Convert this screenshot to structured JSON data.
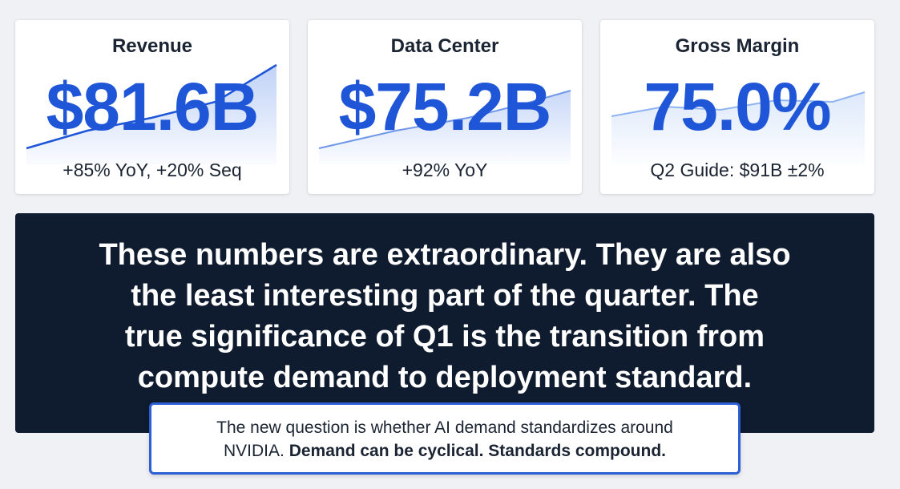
{
  "cards": [
    {
      "title": "Revenue",
      "value": "$81.6B",
      "subtitle": "+85% YoY, +20% Seq"
    },
    {
      "title": "Data Center",
      "value": "$75.2B",
      "subtitle": "+92% YoY"
    },
    {
      "title": "Gross Margin",
      "value": "75.0%",
      "subtitle": "Q2 Guide: $91B ±2%"
    }
  ],
  "banner": {
    "line1": "These numbers are extraordinary. They are also",
    "line2": "the least interesting part of the quarter. The",
    "line3": "true significance of Q1 is the transition from",
    "line4": "compute demand to deployment standard."
  },
  "callout": {
    "line1": "The new question is whether AI demand standardizes around",
    "line2_plain": "NVIDIA. ",
    "line2_bold": "Demand can be cyclical. Standards compound."
  },
  "colors": {
    "accent": "#1f56d8",
    "banner_bg": "#0f1b2e",
    "callout_border": "#2d5fd4"
  }
}
